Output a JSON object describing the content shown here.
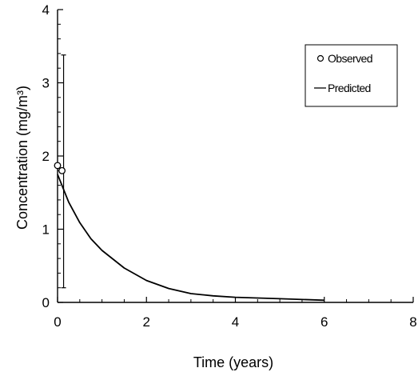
{
  "chart_data": {
    "type": "line",
    "xlabel": "Time (years)",
    "ylabel": "Concentration (mg/m³)",
    "xlim": [
      0,
      8
    ],
    "ylim": [
      0,
      4
    ],
    "xticks": [
      0,
      2,
      4,
      6,
      8
    ],
    "yticks": [
      0,
      1,
      2,
      3,
      4
    ],
    "grid": false,
    "legend": {
      "position": "top-right",
      "entries": [
        {
          "label": "Observed",
          "marker": "open-circle"
        },
        {
          "label": "Predicted",
          "marker": "line"
        }
      ]
    },
    "series": [
      {
        "name": "Observed",
        "kind": "scatter",
        "points": [
          {
            "x": 0.0,
            "y": 1.87
          },
          {
            "x": 0.1,
            "y": 1.8
          }
        ],
        "error_bars": [
          {
            "x": 0.1,
            "low": 0.2,
            "high": 3.38
          }
        ]
      },
      {
        "name": "Predicted",
        "kind": "line",
        "x": [
          0,
          0.25,
          0.5,
          0.75,
          1.0,
          1.5,
          2.0,
          2.5,
          3.0,
          3.5,
          4.0,
          5.0,
          6.0
        ],
        "y": [
          1.75,
          1.37,
          1.09,
          0.87,
          0.71,
          0.47,
          0.3,
          0.19,
          0.12,
          0.09,
          0.07,
          0.05,
          0.03
        ]
      }
    ],
    "colors": {
      "axis": "#000000",
      "series": "#000000",
      "background": "#ffffff"
    }
  }
}
